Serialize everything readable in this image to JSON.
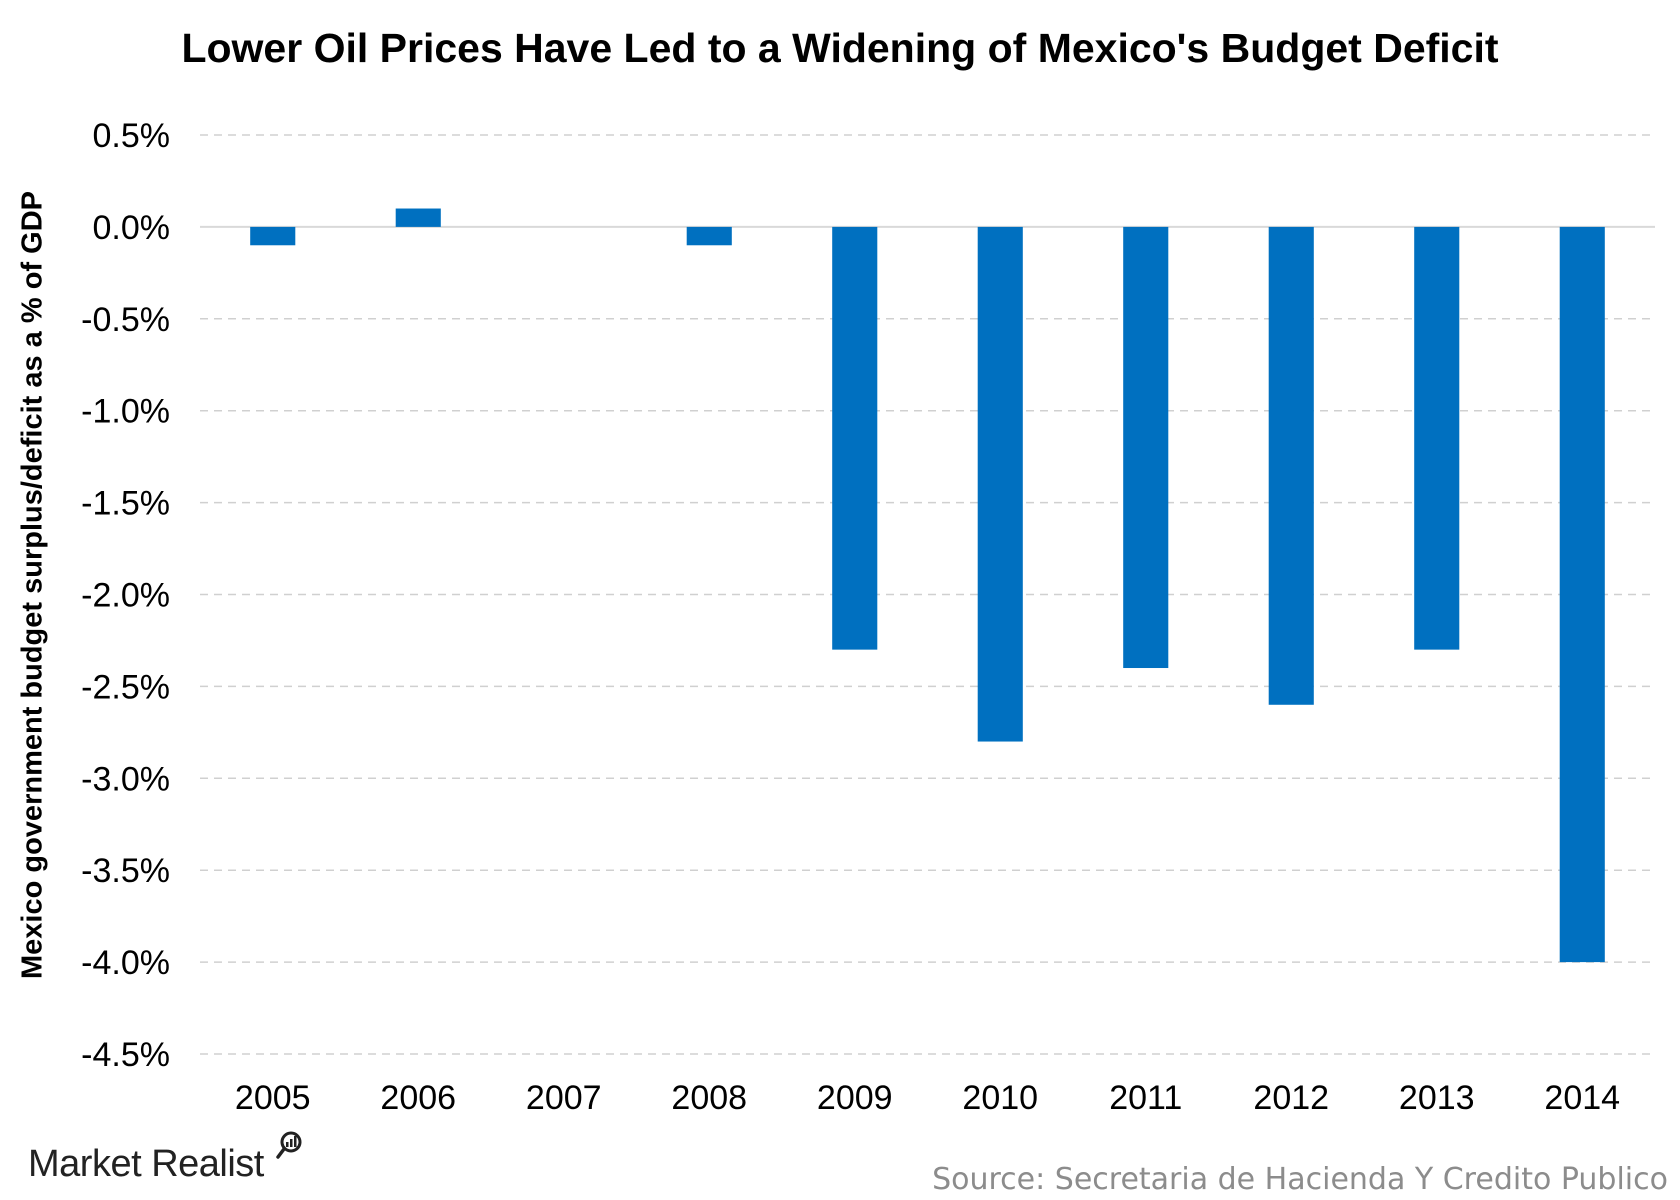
{
  "chart_data": {
    "type": "bar",
    "title": "Lower Oil Prices Have Led to a Widening of Mexico's Budget Deficit",
    "ylabel": "Mexico government budget surplus/deficit as a % of GDP",
    "xlabel": "",
    "categories": [
      "2005",
      "2006",
      "2007",
      "2008",
      "2009",
      "2010",
      "2011",
      "2012",
      "2013",
      "2014"
    ],
    "values": [
      -0.1,
      0.1,
      0.0,
      -0.1,
      -2.3,
      -2.8,
      -2.4,
      -2.6,
      -2.3,
      -4.0
    ],
    "ylim": [
      -4.5,
      0.5
    ],
    "yticks": [
      0.5,
      0.0,
      -0.5,
      -1.0,
      -1.5,
      -2.0,
      -2.5,
      -3.0,
      -3.5,
      -4.0,
      -4.5
    ],
    "ytick_labels": [
      "0.5%",
      "0.0%",
      "-0.5%",
      "-1.0%",
      "-1.5%",
      "-2.0%",
      "-2.5%",
      "-3.0%",
      "-3.5%",
      "-4.0%",
      "-4.5%"
    ],
    "grid": true,
    "bar_color": "#0070c0",
    "grid_color": "#d0d0d0"
  },
  "footer": {
    "brand": "Market Realist",
    "brand_icon": "magnifier-chart-icon",
    "source": "Source: Secretaria de Hacienda Y Credito Publico"
  }
}
